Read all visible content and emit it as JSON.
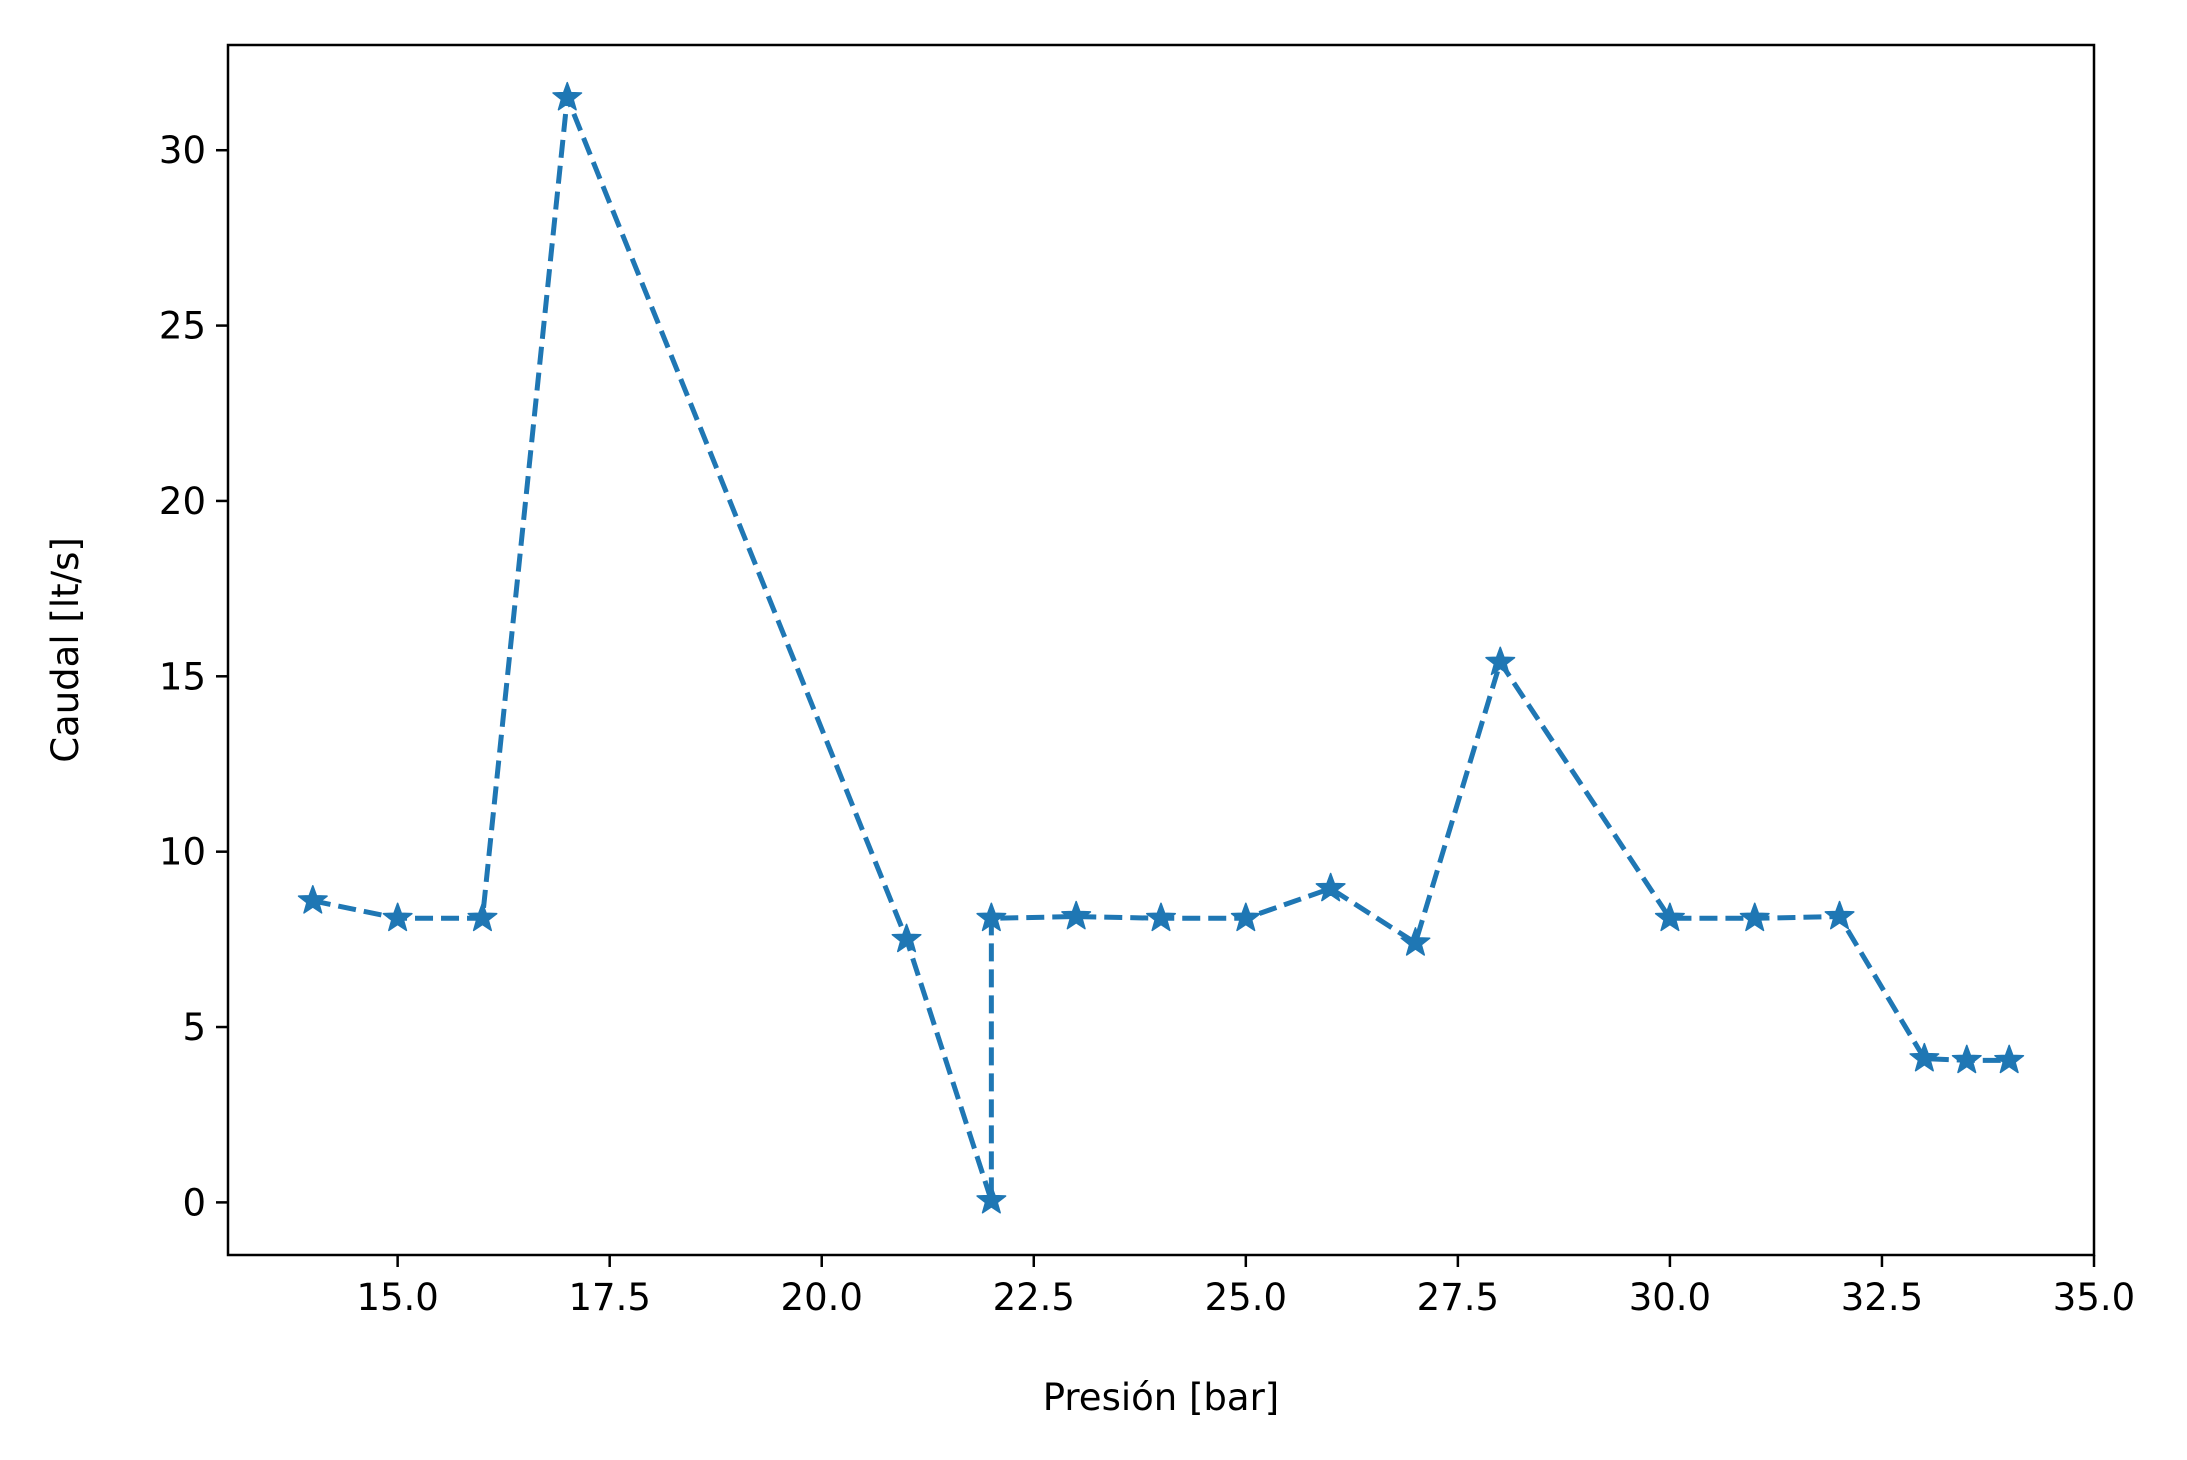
{
  "chart_data": {
    "type": "line",
    "title": "",
    "xlabel": "Presión [bar]",
    "ylabel": "Caudal [lt/s]",
    "xlim": [
      13.0,
      35.0
    ],
    "ylim": [
      -1.5,
      33.0
    ],
    "xticks": [
      15.0,
      17.5,
      20.0,
      22.5,
      25.0,
      27.5,
      30.0,
      32.5,
      35.0
    ],
    "xtick_labels": [
      "15.0",
      "17.5",
      "20.0",
      "22.5",
      "25.0",
      "27.5",
      "30.0",
      "32.5",
      "35.0"
    ],
    "yticks": [
      0,
      5,
      10,
      15,
      20,
      25,
      30
    ],
    "ytick_labels": [
      "0",
      "5",
      "10",
      "15",
      "20",
      "25",
      "30"
    ],
    "grid": false,
    "series": [
      {
        "color": "#1f77b4",
        "linestyle": "dashed",
        "marker": "star",
        "x": [
          14,
          15,
          16,
          17,
          21,
          22,
          22,
          23,
          24,
          25,
          26,
          27,
          28,
          30,
          31,
          32,
          33,
          33.5,
          34
        ],
        "y": [
          8.6,
          8.1,
          8.1,
          31.5,
          7.5,
          0.05,
          8.1,
          8.15,
          8.1,
          8.1,
          8.95,
          7.4,
          15.4,
          8.1,
          8.1,
          8.15,
          4.1,
          4.05,
          4.05
        ]
      }
    ]
  }
}
